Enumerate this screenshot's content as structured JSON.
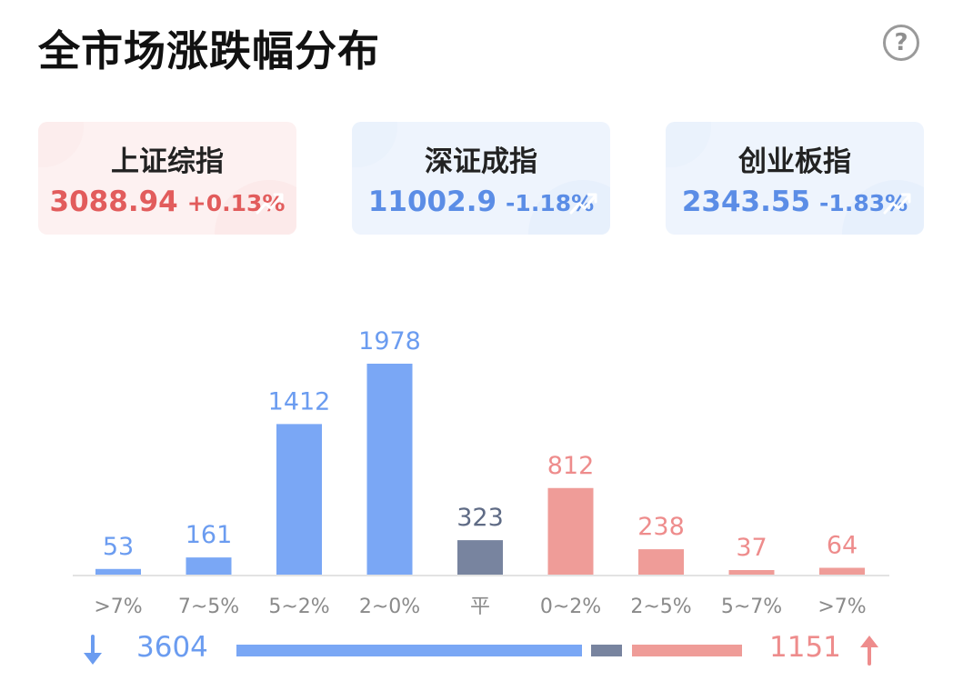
{
  "title": "全市场涨跌幅分布",
  "help_icon": "question-circle-icon",
  "indices": [
    {
      "name": "上证综指",
      "value": "3088.94",
      "change": "+0.13%",
      "direction": "up"
    },
    {
      "name": "深证成指",
      "value": "11002.9",
      "change": "-1.18%",
      "direction": "down"
    },
    {
      "name": "创业板指",
      "value": "2343.55",
      "change": "-1.83%",
      "direction": "down"
    }
  ],
  "colors": {
    "down": "#7aa7f5",
    "flat": "#78849f",
    "up": "#ef9c98",
    "down_label": "#6b9cf0",
    "flat_label": "#5f6b85",
    "up_label": "#ee8c8c",
    "axis_label": "#8a8a8a"
  },
  "chart_data": {
    "type": "bar",
    "categories": [
      ">7%",
      "7~5%",
      "5~2%",
      "2~0%",
      "平",
      "0~2%",
      "2~5%",
      "5~7%",
      ">7%"
    ],
    "values": [
      53,
      161,
      1412,
      1978,
      323,
      812,
      238,
      37,
      64
    ],
    "groups": [
      "down",
      "down",
      "down",
      "down",
      "flat",
      "up",
      "up",
      "up",
      "up"
    ],
    "title": "全市场涨跌幅分布",
    "xlabel": "",
    "ylabel": "",
    "grid": false
  },
  "summary": {
    "down_total": "3604",
    "up_total": "1151",
    "flat_total": 323
  }
}
